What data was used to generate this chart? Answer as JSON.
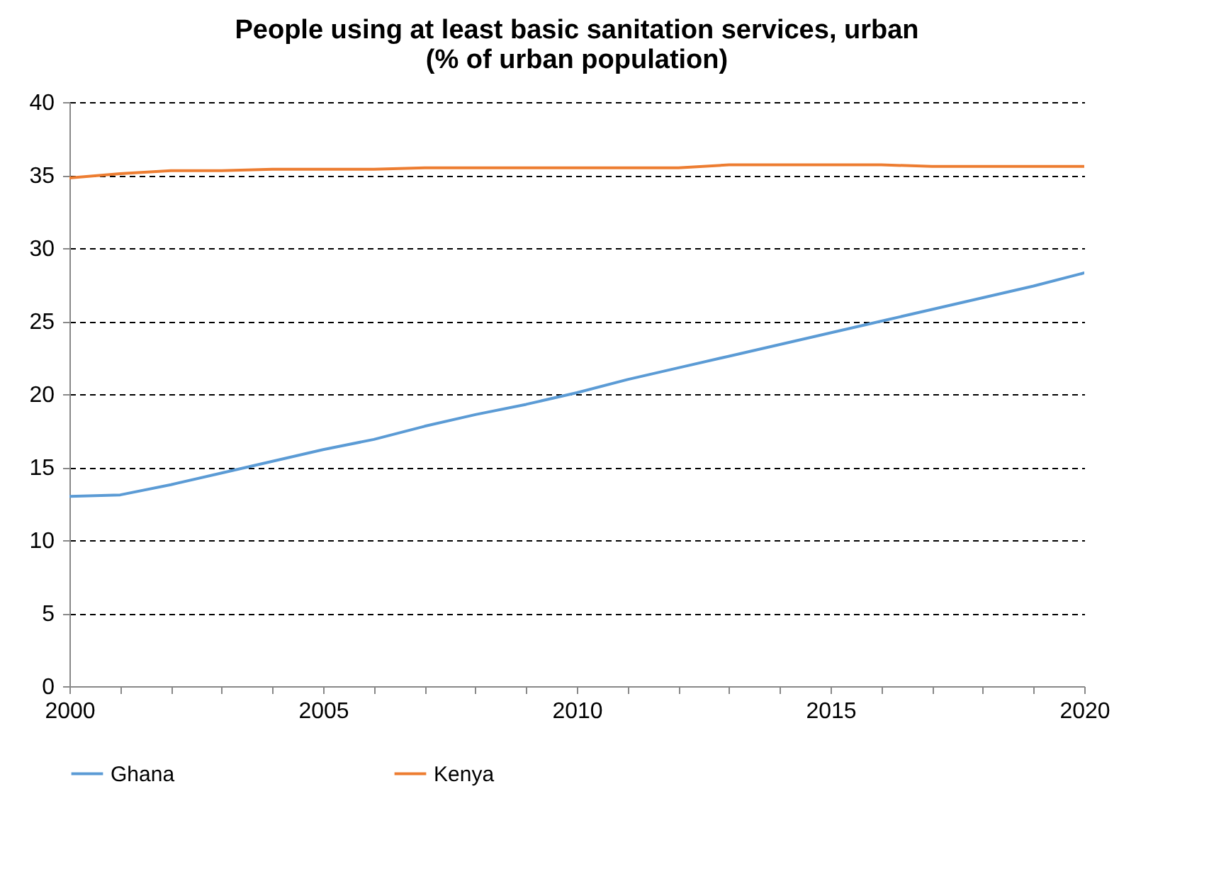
{
  "chart_data": {
    "type": "line",
    "title": "People using at least basic sanitation services, urban\n(% of urban population)",
    "x": [
      2000,
      2001,
      2002,
      2003,
      2004,
      2005,
      2006,
      2007,
      2008,
      2009,
      2010,
      2011,
      2012,
      2013,
      2014,
      2015,
      2016,
      2017,
      2018,
      2019,
      2020
    ],
    "series": [
      {
        "name": "Ghana",
        "color": "#5b9bd5",
        "values": [
          13.0,
          13.1,
          13.8,
          14.6,
          15.4,
          16.2,
          16.9,
          17.8,
          18.6,
          19.3,
          20.1,
          21.0,
          21.8,
          22.6,
          23.4,
          24.2,
          25.0,
          25.8,
          26.6,
          27.4,
          28.3
        ]
      },
      {
        "name": "Kenya",
        "color": "#ed7d31",
        "values": [
          34.8,
          35.1,
          35.3,
          35.3,
          35.4,
          35.4,
          35.4,
          35.5,
          35.5,
          35.5,
          35.5,
          35.5,
          35.5,
          35.7,
          35.7,
          35.7,
          35.7,
          35.6,
          35.6,
          35.6,
          35.6
        ]
      }
    ],
    "xlim": [
      2000,
      2020
    ],
    "xticks": [
      2000,
      {
        "value": 2001,
        "label": null
      },
      {
        "value": 2002,
        "label": null
      },
      {
        "value": 2003,
        "label": null
      },
      {
        "value": 2004,
        "label": null
      },
      2005,
      {
        "value": 2006,
        "label": null
      },
      {
        "value": 2007,
        "label": null
      },
      {
        "value": 2008,
        "label": null
      },
      {
        "value": 2009,
        "label": null
      },
      2010,
      {
        "value": 2011,
        "label": null
      },
      {
        "value": 2012,
        "label": null
      },
      {
        "value": 2013,
        "label": null
      },
      {
        "value": 2014,
        "label": null
      },
      2015,
      {
        "value": 2016,
        "label": null
      },
      {
        "value": 2017,
        "label": null
      },
      {
        "value": 2018,
        "label": null
      },
      {
        "value": 2019,
        "label": null
      },
      2020
    ],
    "ylim": [
      0,
      40
    ],
    "yticks": [
      0,
      5,
      10,
      15,
      20,
      25,
      30,
      35,
      40
    ],
    "grid": "y",
    "legend": "bottom",
    "marker": "none",
    "line_style": "solid"
  }
}
